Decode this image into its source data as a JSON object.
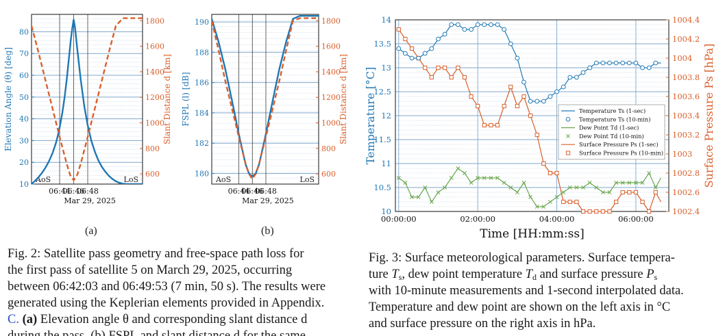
{
  "figure2": {
    "panel_a": {
      "label": "(a)",
      "chart_data": {
        "type": "line",
        "left_axis": {
          "label": "Elevation Angle (θ) [deg]",
          "ticks": [
            10,
            20,
            30,
            40,
            50,
            60,
            70,
            80
          ],
          "ylim": [
            10,
            88
          ]
        },
        "right_axis": {
          "label": "Slant Distance d [km]",
          "ticks": [
            600,
            800,
            1000,
            1200,
            1400,
            1600,
            1800
          ],
          "ylim": [
            520,
            1850
          ]
        },
        "x_ticks": [
          "06:44",
          "06:46",
          "06:48"
        ],
        "x_sub": "Mar 29, 2025",
        "marks": [
          "AoS",
          "LoS"
        ],
        "series": [
          {
            "name": "Elevation angle",
            "axis": "left",
            "style": "solid",
            "color": "#1f77b4",
            "x": [
              0,
              0.5,
              1,
              1.5,
              2,
              2.5,
              3,
              3.5,
              3.8,
              4.1,
              4.4,
              4.7,
              5.0,
              5.3,
              5.6,
              5.8,
              6,
              6.2,
              6.5,
              7,
              7.5,
              8,
              8.5,
              9,
              9.5,
              10,
              10.5,
              11,
              11.5,
              12,
              12.5,
              13,
              13.5,
              14,
              14.5,
              15,
              15.5,
              15.8
            ],
            "values": [
              10,
              11.5,
              13.2,
              15.2,
              17.6,
              20.6,
              24.3,
              29.2,
              33,
              37.6,
              43,
              49.8,
              57.8,
              67,
              76.5,
              81.6,
              85.7,
              81.6,
              72.5,
              58,
              46,
              37,
              30,
              25,
              21,
              18,
              15.7,
              13.8,
              12.4,
              11.3,
              10.6,
              10.2,
              10.05,
              10,
              10,
              10,
              10,
              10
            ]
          },
          {
            "name": "Slant distance",
            "axis": "right",
            "style": "dashed",
            "color": "#d95f2b",
            "x": [
              0,
              1,
              2,
              3,
              4,
              5,
              5.5,
              6,
              6.5,
              7,
              8,
              9,
              10,
              11,
              12,
              13,
              14,
              15,
              15.8
            ],
            "values": [
              1760,
              1550,
              1330,
              1110,
              890,
              680,
              590,
              550,
              590,
              680,
              890,
              1110,
              1330,
              1550,
              1760,
              1820,
              1820,
              1820,
              1820
            ]
          }
        ]
      }
    },
    "panel_b": {
      "label": "(b)",
      "chart_data": {
        "type": "line",
        "left_axis": {
          "label": "FSPL (l) [dB]",
          "ticks": [
            180,
            182,
            184,
            186,
            188,
            190
          ],
          "ylim": [
            179.3,
            190.5
          ]
        },
        "right_axis": {
          "label": "Slant Distance d [km]",
          "ticks": [
            600,
            800,
            1000,
            1200,
            1400,
            1600,
            1800
          ],
          "ylim": [
            520,
            1850
          ]
        },
        "x_ticks": [
          "06:44",
          "06:46",
          "06:48"
        ],
        "x_sub": "Mar 29, 2025",
        "marks": [
          "AoS",
          "LoS"
        ],
        "series": [
          {
            "name": "FSPL",
            "axis": "left",
            "style": "solid",
            "color": "#1f77b4",
            "x": [
              0,
              1,
              2,
              3,
              4,
              5,
              5.5,
              6,
              6.5,
              7,
              8,
              9,
              10,
              11,
              12,
              13,
              14,
              15,
              15.8
            ],
            "values": [
              190.2,
              188.7,
              186.9,
              184.8,
              182.6,
              180.6,
              180,
              179.8,
              180,
              180.6,
              182.6,
              184.8,
              186.9,
              188.7,
              190.2,
              190.4,
              190.4,
              190.4,
              190.4
            ]
          },
          {
            "name": "Slant distance",
            "axis": "right",
            "style": "dashed",
            "color": "#d95f2b",
            "x": [
              0,
              1,
              2,
              3,
              4,
              5,
              5.5,
              6,
              6.5,
              7,
              8,
              9,
              10,
              11,
              12,
              13,
              14,
              15,
              15.8
            ],
            "values": [
              1800,
              1570,
              1330,
              1110,
              890,
              680,
              600,
              560,
              600,
              680,
              890,
              1110,
              1330,
              1570,
              1800,
              1820,
              1820,
              1820,
              1820
            ]
          }
        ]
      }
    },
    "caption": {
      "lines": [
        "Fig. 2: Satellite pass geometry and free-space path loss for",
        "the first pass of satellite 5 on March 29, 2025, occurring",
        "between 06:42:03 and 06:49:53 (7 min, 50 s). The results were",
        "generated using the Keplerian elements provided in Appendix."
      ],
      "line5_link": "C.",
      "line5_bold": "(a)",
      "line5_text": "Elevation angle θ and corresponding slant distance d",
      "line6": "during the pass. (b) FSPL and slant distance d for the same"
    }
  },
  "figure3": {
    "chart_data": {
      "type": "line",
      "xlabel": "Time [HH:mm:ss]",
      "x_ticks": [
        "00:00:00",
        "02:00:00",
        "04:00:00",
        "06:00:00"
      ],
      "x_range_minutes": [
        -5,
        410
      ],
      "ylabel_left": "Temperature [°C]",
      "ylabel_right": "Surface Pressure Ps [hPa]",
      "ylim_left": [
        10,
        14
      ],
      "ylim_right": [
        1002.4,
        1004.4
      ],
      "left_ticks": [
        "10",
        "10.5",
        "11",
        "11.5",
        "12",
        "12.5",
        "13",
        "13.5",
        "14"
      ],
      "right_ticks": [
        "1002.4",
        "1002.6",
        "1002.8",
        "1003",
        "1003.2",
        "1003.4",
        "1003.6",
        "1003.8",
        "1004",
        "1004.2",
        "1004.4"
      ],
      "legend": [
        {
          "text": "Temperature Ts (1-sec)",
          "marker": "line",
          "color": "#1f77b4"
        },
        {
          "text": "Temperature Ts (10-min)",
          "marker": "circle",
          "color": "#1f77b4"
        },
        {
          "text": "Dew Point Td (1-sec)",
          "marker": "line",
          "color": "#6aa84f"
        },
        {
          "text": "Dew Point Td (10-min)",
          "marker": "x",
          "color": "#6aa84f"
        },
        {
          "text": "Surface Pressure Ps (1-sec)",
          "marker": "line",
          "color": "#d95f2b"
        },
        {
          "text": "Surface Pressure Ps (10-min)",
          "marker": "square",
          "color": "#d95f2b"
        }
      ],
      "temperature": [
        13.4,
        13.3,
        13.2,
        13.2,
        13.3,
        13.4,
        13.6,
        13.7,
        13.9,
        13.9,
        13.8,
        13.8,
        13.9,
        13.9,
        13.9,
        13.9,
        13.8,
        13.5,
        13.2,
        12.7,
        12.3,
        12.3,
        12.3,
        12.4,
        12.5,
        12.6,
        12.8,
        12.8,
        12.9,
        13.0,
        13.1,
        13.1,
        13.1,
        13.1,
        13.1,
        13.1,
        13.1,
        13.0,
        13.0,
        13.1
      ],
      "temperature_tail": 13.1,
      "dew_point": [
        10.7,
        10.6,
        10.3,
        10.3,
        10.5,
        10.2,
        10.4,
        10.5,
        10.7,
        10.9,
        10.8,
        10.6,
        10.7,
        10.7,
        10.7,
        10.7,
        10.6,
        10.5,
        10.4,
        10.6,
        10.3,
        10.1,
        10.1,
        10.2,
        10.3,
        10.4,
        10.5,
        10.5,
        10.5,
        10.6,
        10.5,
        10.4,
        10.4,
        10.6,
        10.6,
        10.6,
        10.6,
        10.6,
        10.8,
        10.5
      ],
      "dew_point_tail": 10.7,
      "pressure": [
        1004.3,
        1004.2,
        1004.1,
        1004.0,
        1003.9,
        1003.8,
        1003.9,
        1003.9,
        1003.8,
        1003.9,
        1003.8,
        1003.6,
        1003.5,
        1003.3,
        1003.3,
        1003.3,
        1003.5,
        1003.7,
        1003.5,
        1003.6,
        1003.4,
        1003.2,
        1002.9,
        1002.8,
        1002.8,
        1002.5,
        1002.5,
        1002.5,
        1002.4,
        1002.4,
        1002.4,
        1002.4,
        1002.4,
        1002.5,
        1002.6,
        1002.6,
        1002.6,
        1002.5,
        1002.4,
        1002.6
      ],
      "pressure_tail": 1002.5,
      "sample_interval_minutes": 10
    },
    "caption": {
      "line1": "Fig. 3: Surface meteorological parameters. Surface tempera-",
      "line2a": "ture",
      "line2_T": "T",
      "line2_s": "s",
      "line2b": ", dew point temperature",
      "line2_Td": "T",
      "line2_d": "d",
      "line2c": "and surface pressure",
      "line2_P": "P",
      "line2_ps": "s",
      "line3": "with 10-minute measurements and 1-second interpolated data.",
      "line4": "Temperature and dew point are shown on the left axis in °C",
      "line5": "and surface pressure on the right axis in hPa."
    }
  }
}
